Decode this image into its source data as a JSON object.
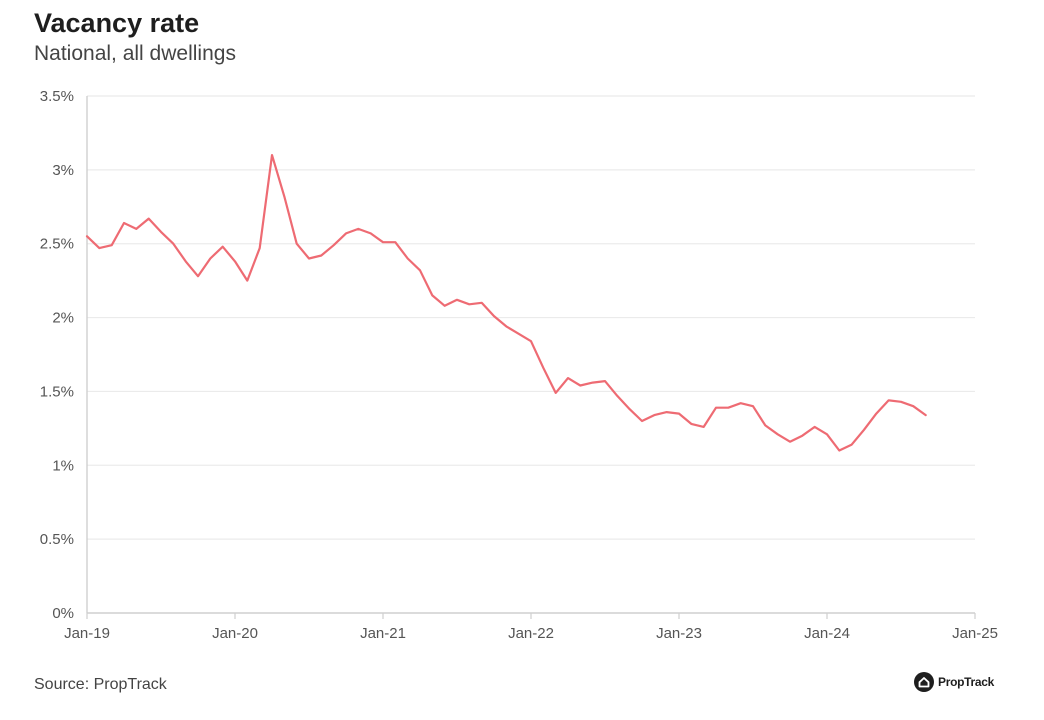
{
  "header": {
    "title": "Vacancy rate",
    "subtitle": "National, all dwellings"
  },
  "footer": {
    "source": "Source: PropTrack",
    "brand": "PropTrack"
  },
  "colors": {
    "line": "#ee6b73",
    "grid": "#ebebeb",
    "axis": "#cfcfcf"
  },
  "chart_data": {
    "type": "line",
    "title": "Vacancy rate",
    "subtitle": "National, all dwellings",
    "xlabel": "",
    "ylabel": "",
    "x_tick_labels": [
      "Jan-19",
      "Jan-20",
      "Jan-21",
      "Jan-22",
      "Jan-23",
      "Jan-24",
      "Jan-25"
    ],
    "y_tick_labels": [
      "0%",
      "0.5%",
      "1%",
      "1.5%",
      "2%",
      "2.5%",
      "3%",
      "3.5%"
    ],
    "ylim": [
      0,
      3.5
    ],
    "xlim": [
      "2019-01",
      "2025-01"
    ],
    "grid": true,
    "series": [
      {
        "x": [
          "2019-01",
          "2019-02",
          "2019-03",
          "2019-04",
          "2019-05",
          "2019-06",
          "2019-07",
          "2019-08",
          "2019-09",
          "2019-10",
          "2019-11",
          "2019-12",
          "2020-01",
          "2020-02",
          "2020-03",
          "2020-04",
          "2020-05",
          "2020-06",
          "2020-07",
          "2020-08",
          "2020-09",
          "2020-10",
          "2020-11",
          "2020-12",
          "2021-01",
          "2021-02",
          "2021-03",
          "2021-04",
          "2021-05",
          "2021-06",
          "2021-07",
          "2021-08",
          "2021-09",
          "2021-10",
          "2021-11",
          "2021-12",
          "2022-01",
          "2022-02",
          "2022-03",
          "2022-04",
          "2022-05",
          "2022-06",
          "2022-07",
          "2022-08",
          "2022-09",
          "2022-10",
          "2022-11",
          "2022-12",
          "2023-01",
          "2023-02",
          "2023-03",
          "2023-04",
          "2023-05",
          "2023-06",
          "2023-07",
          "2023-08",
          "2023-09",
          "2023-10",
          "2023-11",
          "2023-12",
          "2024-01",
          "2024-02",
          "2024-03",
          "2024-04",
          "2024-05",
          "2024-06",
          "2024-07",
          "2024-08",
          "2024-09"
        ],
        "values": [
          2.55,
          2.47,
          2.49,
          2.64,
          2.6,
          2.67,
          2.58,
          2.5,
          2.38,
          2.28,
          2.4,
          2.48,
          2.38,
          2.25,
          2.47,
          3.1,
          2.82,
          2.5,
          2.4,
          2.42,
          2.49,
          2.57,
          2.6,
          2.57,
          2.51,
          2.51,
          2.4,
          2.32,
          2.15,
          2.08,
          2.12,
          2.09,
          2.1,
          2.01,
          1.94,
          1.89,
          1.84,
          1.66,
          1.49,
          1.59,
          1.54,
          1.56,
          1.57,
          1.47,
          1.38,
          1.3,
          1.34,
          1.36,
          1.35,
          1.28,
          1.26,
          1.39,
          1.39,
          1.42,
          1.4,
          1.27,
          1.21,
          1.16,
          1.2,
          1.26,
          1.21,
          1.1,
          1.14,
          1.24,
          1.35,
          1.44,
          1.43,
          1.4,
          1.34
        ]
      }
    ]
  }
}
